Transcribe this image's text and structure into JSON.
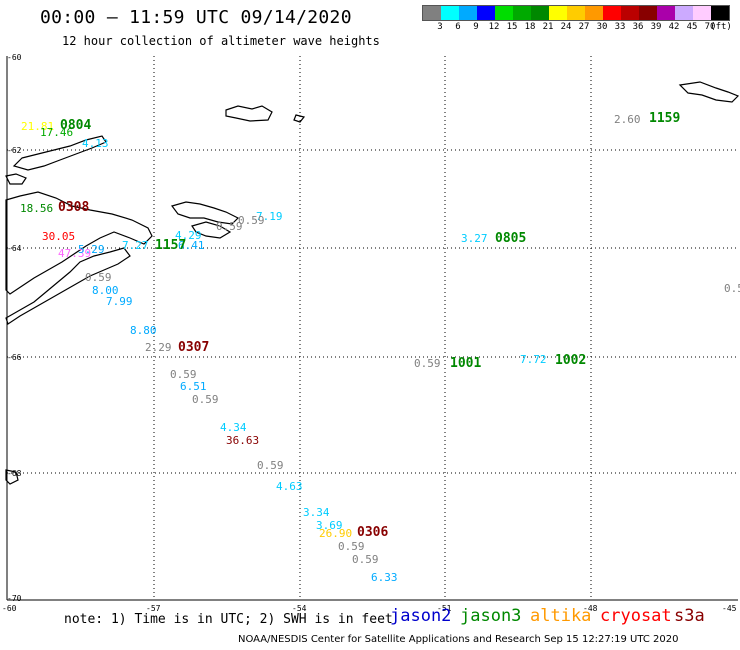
{
  "header": {
    "title": "00:00 – 11:59 UTC 09/14/2020",
    "subtitle": "12 hour collection of altimeter wave heights"
  },
  "color_scale": {
    "swatches": [
      "#808080",
      "#00ffff",
      "#00aaff",
      "#0000ff",
      "#00dd00",
      "#00aa00",
      "#008800",
      "#ffff00",
      "#ffcc00",
      "#ff9900",
      "#ff0000",
      "#bb0000",
      "#880000",
      "#aa00aa",
      "#ccaaff",
      "#ffccff",
      "#000000"
    ],
    "labels": [
      "3",
      "6",
      "9",
      "12",
      "15",
      "18",
      "21",
      "24",
      "27",
      "30",
      "33",
      "36",
      "39",
      "42",
      "45",
      "70",
      "(ft)"
    ]
  },
  "axes": {
    "lat_labels": [
      "-60",
      "-62",
      "-64",
      "-66",
      "-68",
      "-70"
    ],
    "lon_labels": [
      "-60",
      "-57",
      "-54",
      "-51",
      "-48",
      "-45"
    ]
  },
  "observations": [
    {
      "text": "21.81",
      "color": "#ffff00"
    },
    {
      "text": "17.46",
      "color": "#00aa00"
    },
    {
      "text": "4.13",
      "color": "#00ccff"
    },
    {
      "text": "18.56",
      "color": "#008800"
    },
    {
      "text": "30.05",
      "color": "#ff0000"
    },
    {
      "text": "47.39",
      "color": "#ff66ff"
    },
    {
      "text": "5.29",
      "color": "#00aaff"
    },
    {
      "text": "7.27",
      "color": "#00ccff"
    },
    {
      "text": "7.19",
      "color": "#00ccff"
    },
    {
      "text": "0.59",
      "color": "#808080"
    },
    {
      "text": "0.59",
      "color": "#808080"
    },
    {
      "text": "4.29",
      "color": "#00ccff"
    },
    {
      "text": "6.41",
      "color": "#00aaff"
    },
    {
      "text": "0.59",
      "color": "#808080"
    },
    {
      "text": "8.00",
      "color": "#00aaff"
    },
    {
      "text": "7.99",
      "color": "#00aaff"
    },
    {
      "text": "8.80",
      "color": "#00aaff"
    },
    {
      "text": "2.29",
      "color": "#808080"
    },
    {
      "text": "0.59",
      "color": "#808080"
    },
    {
      "text": "6.51",
      "color": "#00aaff"
    },
    {
      "text": "0.59",
      "color": "#808080"
    },
    {
      "text": "4.34",
      "color": "#00ccff"
    },
    {
      "text": "36.63",
      "color": "#880000"
    },
    {
      "text": "0.59",
      "color": "#808080"
    },
    {
      "text": "4.63",
      "color": "#00ccff"
    },
    {
      "text": "3.34",
      "color": "#00ccff"
    },
    {
      "text": "3.69",
      "color": "#00ccff"
    },
    {
      "text": "26.90",
      "color": "#ffcc00"
    },
    {
      "text": "0.59",
      "color": "#808080"
    },
    {
      "text": "0.59",
      "color": "#808080"
    },
    {
      "text": "6.33",
      "color": "#00aaff"
    },
    {
      "text": "3.27",
      "color": "#00ccff"
    },
    {
      "text": "0.59",
      "color": "#808080"
    },
    {
      "text": "7.72",
      "color": "#00ccff"
    },
    {
      "text": "2.60",
      "color": "#808080"
    },
    {
      "text": "0.5",
      "color": "#808080"
    }
  ],
  "passes": [
    {
      "text": "0804",
      "color": "#008800"
    },
    {
      "text": "0308",
      "color": "#880000"
    },
    {
      "text": "1157",
      "color": "#008800"
    },
    {
      "text": "0307",
      "color": "#880000"
    },
    {
      "text": "0306",
      "color": "#880000"
    },
    {
      "text": "0805",
      "color": "#008800"
    },
    {
      "text": "1001",
      "color": "#008800"
    },
    {
      "text": "1002",
      "color": "#008800"
    },
    {
      "text": "1159",
      "color": "#008800"
    }
  ],
  "footer": {
    "note": "note: 1) Time is in UTC; 2) SWH is in feet",
    "satellites": [
      {
        "name": "jason2",
        "color": "#0000cc"
      },
      {
        "name": "jason3",
        "color": "#008800"
      },
      {
        "name": "altika",
        "color": "#ff9900"
      },
      {
        "name": "cryosat",
        "color": "#ff0000"
      },
      {
        "name": "s3a",
        "color": "#880000"
      }
    ],
    "credit": "NOAA/NESDIS Center for Satellite Applications and Research    Sep 15 12:27:19 UTC 2020"
  }
}
